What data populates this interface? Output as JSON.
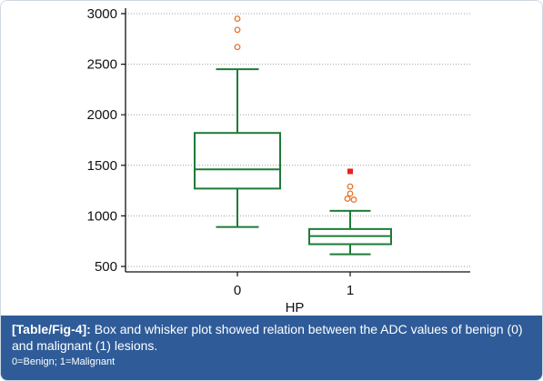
{
  "chart_data": {
    "type": "box",
    "xlabel": "HP",
    "ylabel": "",
    "ylim": [
      450,
      3050
    ],
    "yticks": [
      500,
      1000,
      1500,
      2000,
      2500,
      3000
    ],
    "grid": "horizontal dotted",
    "categories": [
      "0",
      "1"
    ],
    "boxes": [
      {
        "category": "0",
        "whisker_low": 890,
        "q1": 1270,
        "median": 1460,
        "q3": 1820,
        "whisker_high": 2450,
        "outliers": [
          2950,
          2840,
          2670
        ],
        "far_outliers": []
      },
      {
        "category": "1",
        "whisker_low": 620,
        "q1": 720,
        "median": 800,
        "q3": 870,
        "whisker_high": 1050,
        "outliers": [
          1290,
          1220,
          1170,
          1160
        ],
        "far_outliers": [
          1440
        ]
      }
    ],
    "colors": {
      "box": "#1e7b37",
      "outlier": "#e8742a",
      "far_outlier": "#e32423",
      "grid": "#a0a0a0",
      "axis": "#111111"
    }
  },
  "caption": {
    "tag": "[Table/Fig-4]:",
    "text": " Box and whisker plot showed relation between the ADC values of benign (0) and malignant (1) lesions.",
    "note": "0=Benign; 1=Malignant"
  }
}
